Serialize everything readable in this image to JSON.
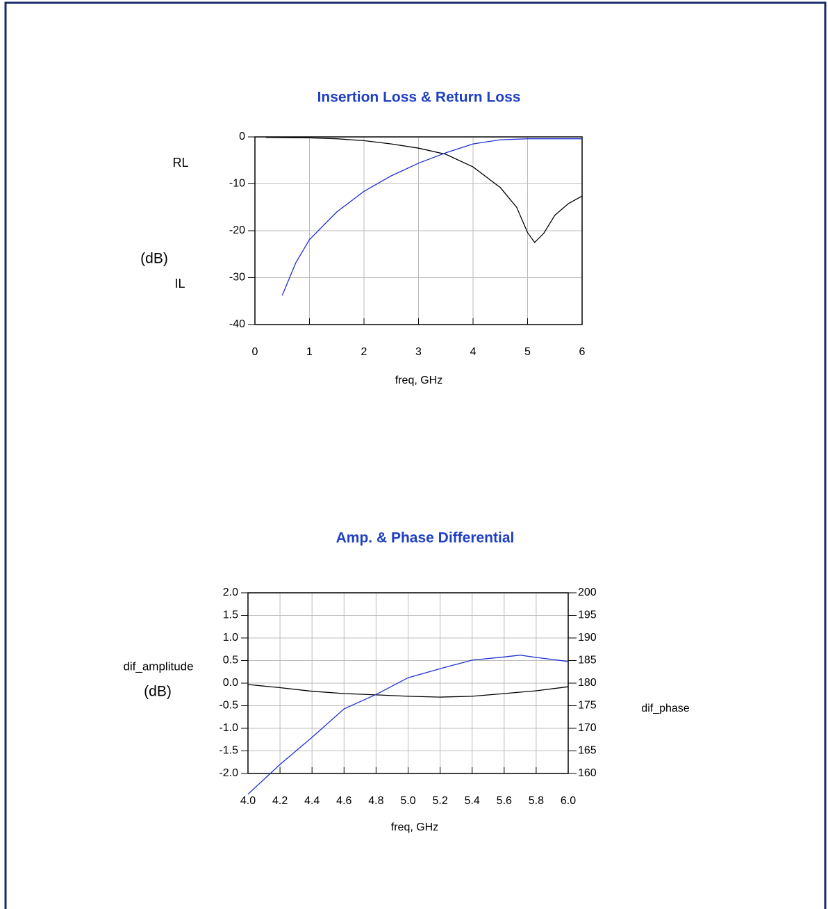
{
  "chart_data": [
    {
      "type": "line",
      "title": "Insertion Loss & Return Loss",
      "xlabel": "freq, GHz",
      "ylabel": [
        "RL",
        "(dB)",
        "IL"
      ],
      "ylabel_colors": [
        "#000000",
        "#1f3fc4",
        "#1f3fc4"
      ],
      "xlim": [
        0,
        6
      ],
      "xticks": [
        0,
        1,
        2,
        3,
        4,
        5,
        6
      ],
      "ylim": [
        -40,
        0
      ],
      "yticks": [
        0,
        -10,
        -20,
        -30,
        -40
      ],
      "grid": true,
      "series": [
        {
          "name": "RL",
          "color": "#000000",
          "x": [
            0.2,
            1,
            1.5,
            2,
            2.5,
            3,
            3.5,
            4,
            4.5,
            4.8,
            5,
            5.13,
            5.3,
            5.5,
            5.75,
            6
          ],
          "values": [
            -0.1,
            -0.2,
            -0.4,
            -0.8,
            -1.5,
            -2.4,
            -3.7,
            -6.4,
            -10.8,
            -15,
            -20.4,
            -22.5,
            -20.5,
            -16.7,
            -14.2,
            -12.6
          ]
        },
        {
          "name": "IL",
          "color": "#1f2fd0",
          "x": [
            0.5,
            0.75,
            1,
            1.5,
            2,
            2.5,
            3,
            3.5,
            4,
            4.5,
            5,
            6
          ],
          "values": [
            -33.8,
            -26.8,
            -21.9,
            -16,
            -11.6,
            -8.3,
            -5.6,
            -3.4,
            -1.5,
            -0.6,
            -0.4,
            -0.4
          ]
        }
      ]
    },
    {
      "type": "line",
      "title": "Amp. & Phase Differential",
      "xlabel": "freq, GHz",
      "ylabel": [
        "dif_amplitude",
        "(dB)"
      ],
      "ylabel_colors": [
        "#1f3fc4",
        "#1f3fc4"
      ],
      "y2label": "dif_phase",
      "xlim": [
        4,
        6
      ],
      "xticks": [
        {
          "value": 4,
          "label": "4.0"
        },
        4.2,
        4.4,
        4.6,
        4.8,
        {
          "value": 5,
          "label": "5.0"
        },
        5.2,
        5.4,
        5.6,
        5.8,
        {
          "value": 6,
          "label": "6.0"
        }
      ],
      "ylim": [
        -2,
        2
      ],
      "yticks": [
        {
          "value": 2,
          "label": "2.0"
        },
        1.5,
        {
          "value": 1,
          "label": "1.0"
        },
        0.5,
        {
          "value": 0,
          "label": "0.0"
        },
        -0.5,
        {
          "value": -1,
          "label": "-1.0"
        },
        -1.5,
        {
          "value": -2,
          "label": "-2.0"
        }
      ],
      "y2lim": [
        160,
        200
      ],
      "y2ticks": [
        200,
        195,
        190,
        185,
        180,
        175,
        170,
        165,
        160
      ],
      "grid": true,
      "series": [
        {
          "name": "dif_amplitude",
          "color": "#000000",
          "x": [
            4,
            4.2,
            4.4,
            4.6,
            4.8,
            5,
            5.2,
            5.4,
            5.6,
            5.8,
            6
          ],
          "values": [
            -0.03,
            -0.1,
            -0.18,
            -0.23,
            -0.26,
            -0.29,
            -0.31,
            -0.29,
            -0.23,
            -0.17,
            -0.08
          ]
        },
        {
          "name": "dif_phase",
          "color": "#1f2fd0",
          "axis": "y2",
          "x": [
            4,
            4.2,
            4.4,
            4.6,
            4.8,
            5,
            5.2,
            5.4,
            5.6,
            5.7,
            5.8,
            6
          ],
          "values": [
            155.4,
            162,
            168,
            174.3,
            177.5,
            181.2,
            183.2,
            185.1,
            185.8,
            186.2,
            185.7,
            184.8
          ]
        }
      ]
    }
  ]
}
